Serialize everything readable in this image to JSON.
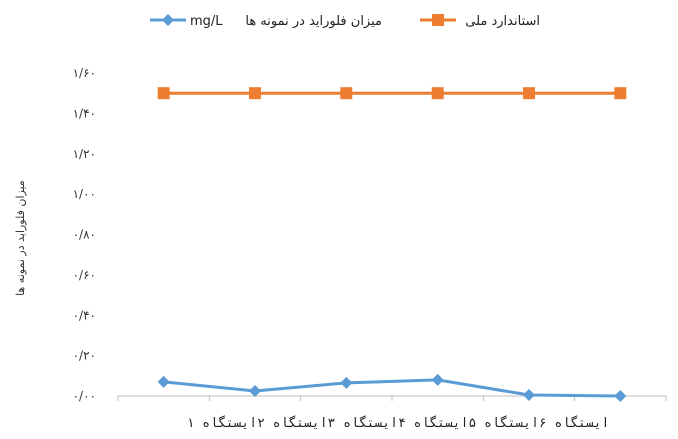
{
  "chart_data": {
    "type": "line",
    "title": "",
    "xlabel": "",
    "ylabel": "میزان فلوراید در نمونه ها",
    "categories": [
      "ایستگاه ۱",
      "ایستگاه ۲",
      "ایستگاه ۳",
      "ایستگاه ۴",
      "ایستگاه ۵",
      "ایستگاه ۶"
    ],
    "category_axis_text": "ایستگاه ۶ایستگاه ۵ایستگاه ۴ایستگاه ۳ایستگاه ۲ایستگاه ۱",
    "ylim": [
      0,
      1.6
    ],
    "yticks": [
      0,
      0.2,
      0.4,
      0.6,
      0.8,
      1.0,
      1.2,
      1.4,
      1.6
    ],
    "ytick_labels": [
      "۰/۰۰",
      "۰/۲۰",
      "۰/۴۰",
      "۰/۶۰",
      "۰/۸۰",
      "۱/۰۰",
      "۱/۲۰",
      "۱/۴۰",
      "۱/۶۰"
    ],
    "grid": false,
    "legend_position": "top",
    "series": [
      {
        "name": "میزان فلوراید در نمونه ها mg/L",
        "legend_label": "میزان فلوراید در نمونه ها",
        "legend_unit": "mg/L",
        "marker": "diamond",
        "color": "#5B9BD5",
        "values": [
          0.07,
          0.025,
          0.065,
          0.08,
          0.005,
          0.0
        ]
      },
      {
        "name": "استاندارد ملی",
        "legend_label": "استاندارد ملی",
        "marker": "square",
        "color": "#ED7D31",
        "values": [
          1.5,
          1.5,
          1.5,
          1.5,
          1.5,
          1.5
        ]
      }
    ]
  }
}
